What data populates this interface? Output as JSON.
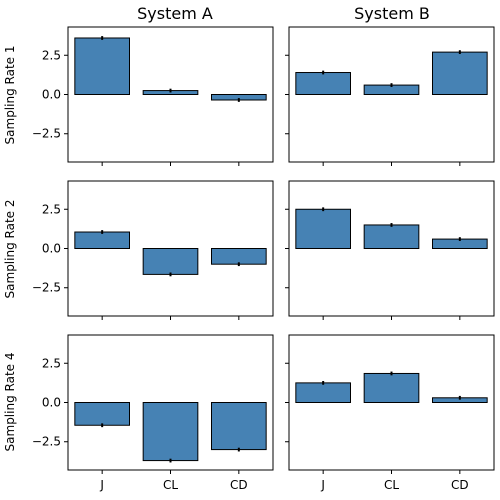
{
  "chart_data": {
    "type": "bar",
    "layout": "3x2 grid, shared axes",
    "columns": [
      "System A",
      "System B"
    ],
    "rows": [
      "Sampling Rate 1",
      "Sampling Rate 2",
      "Sampling Rate 4"
    ],
    "categories": [
      "J",
      "CL",
      "CD"
    ],
    "ylim": [
      -4.3,
      4.3
    ],
    "yticks": [
      -2.5,
      0.0,
      2.5
    ],
    "ytick_labels": [
      "−2.5",
      "0.0",
      "2.5"
    ],
    "bar_color": "#4682b4",
    "grid": false,
    "panels": [
      {
        "row": "Sampling Rate 1",
        "column": "System A",
        "values": [
          3.6,
          0.25,
          -0.35
        ],
        "errors": [
          0.12,
          0.12,
          0.12
        ]
      },
      {
        "row": "Sampling Rate 1",
        "column": "System B",
        "values": [
          1.4,
          0.6,
          2.7
        ],
        "errors": [
          0.12,
          0.12,
          0.12
        ]
      },
      {
        "row": "Sampling Rate 2",
        "column": "System A",
        "values": [
          1.05,
          -1.65,
          -1.0
        ],
        "errors": [
          0.12,
          0.12,
          0.12
        ]
      },
      {
        "row": "Sampling Rate 2",
        "column": "System B",
        "values": [
          2.5,
          1.5,
          0.6
        ],
        "errors": [
          0.12,
          0.12,
          0.12
        ]
      },
      {
        "row": "Sampling Rate 4",
        "column": "System A",
        "values": [
          -1.45,
          -3.7,
          -3.0
        ],
        "errors": [
          0.12,
          0.12,
          0.12
        ]
      },
      {
        "row": "Sampling Rate 4",
        "column": "System B",
        "values": [
          1.25,
          1.85,
          0.3
        ],
        "errors": [
          0.12,
          0.12,
          0.12
        ]
      }
    ]
  }
}
